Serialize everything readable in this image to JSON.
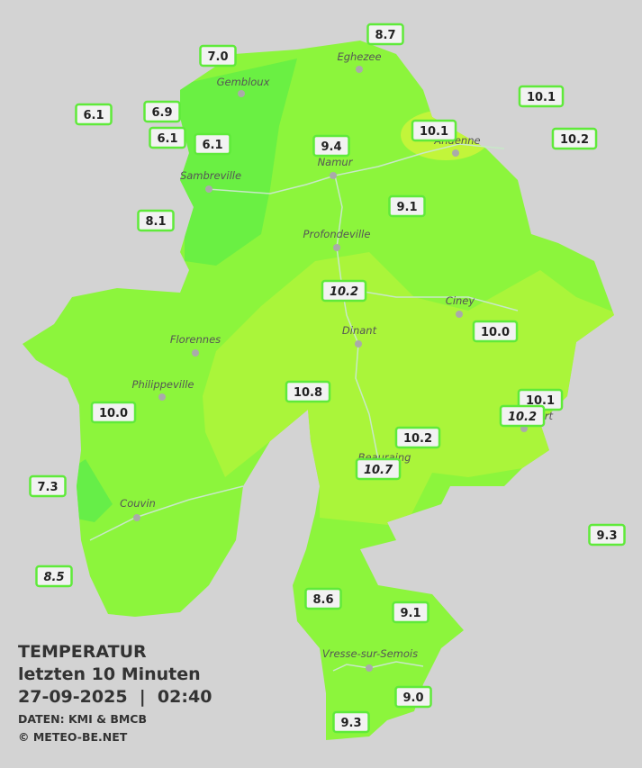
{
  "header": {
    "title": "TEMPERATUR",
    "subtitle": "letzten 10 Minuten",
    "datetime": "27-09-2025  |  02:40",
    "source": "DATEN: KMI & BMCB",
    "copyright": "© METEO-BE.NET"
  },
  "cities": [
    "Eghezee",
    "Gembloux",
    "Andenne",
    "Sambreville",
    "Namur",
    "Profondeville",
    "Ciney",
    "Florennes",
    "Dinant",
    "Philippeville",
    "Rochefort",
    "Beauraing",
    "Couvin",
    "Vresse-sur-Semois"
  ],
  "stations": [
    {
      "label": "7.0"
    },
    {
      "label": "8.7"
    },
    {
      "label": "6.1"
    },
    {
      "label": "6.9"
    },
    {
      "label": "6.1"
    },
    {
      "label": "6.1"
    },
    {
      "label": "10.1"
    },
    {
      "label": "10.1"
    },
    {
      "label": "10.2"
    },
    {
      "label": "9.4"
    },
    {
      "label": "9.1"
    },
    {
      "label": "8.1"
    },
    {
      "label": "10.2",
      "italic": true
    },
    {
      "label": "10.0"
    },
    {
      "label": "10.8"
    },
    {
      "label": "10.1"
    },
    {
      "label": "10.2",
      "italic": true
    },
    {
      "label": "10.0"
    },
    {
      "label": "10.2"
    },
    {
      "label": "10.7",
      "italic": true
    },
    {
      "label": "7.3"
    },
    {
      "label": "9.3"
    },
    {
      "label": "8.5",
      "italic": true
    },
    {
      "label": "8.6"
    },
    {
      "label": "9.1"
    },
    {
      "label": "9.0"
    },
    {
      "label": "9.3"
    }
  ]
}
